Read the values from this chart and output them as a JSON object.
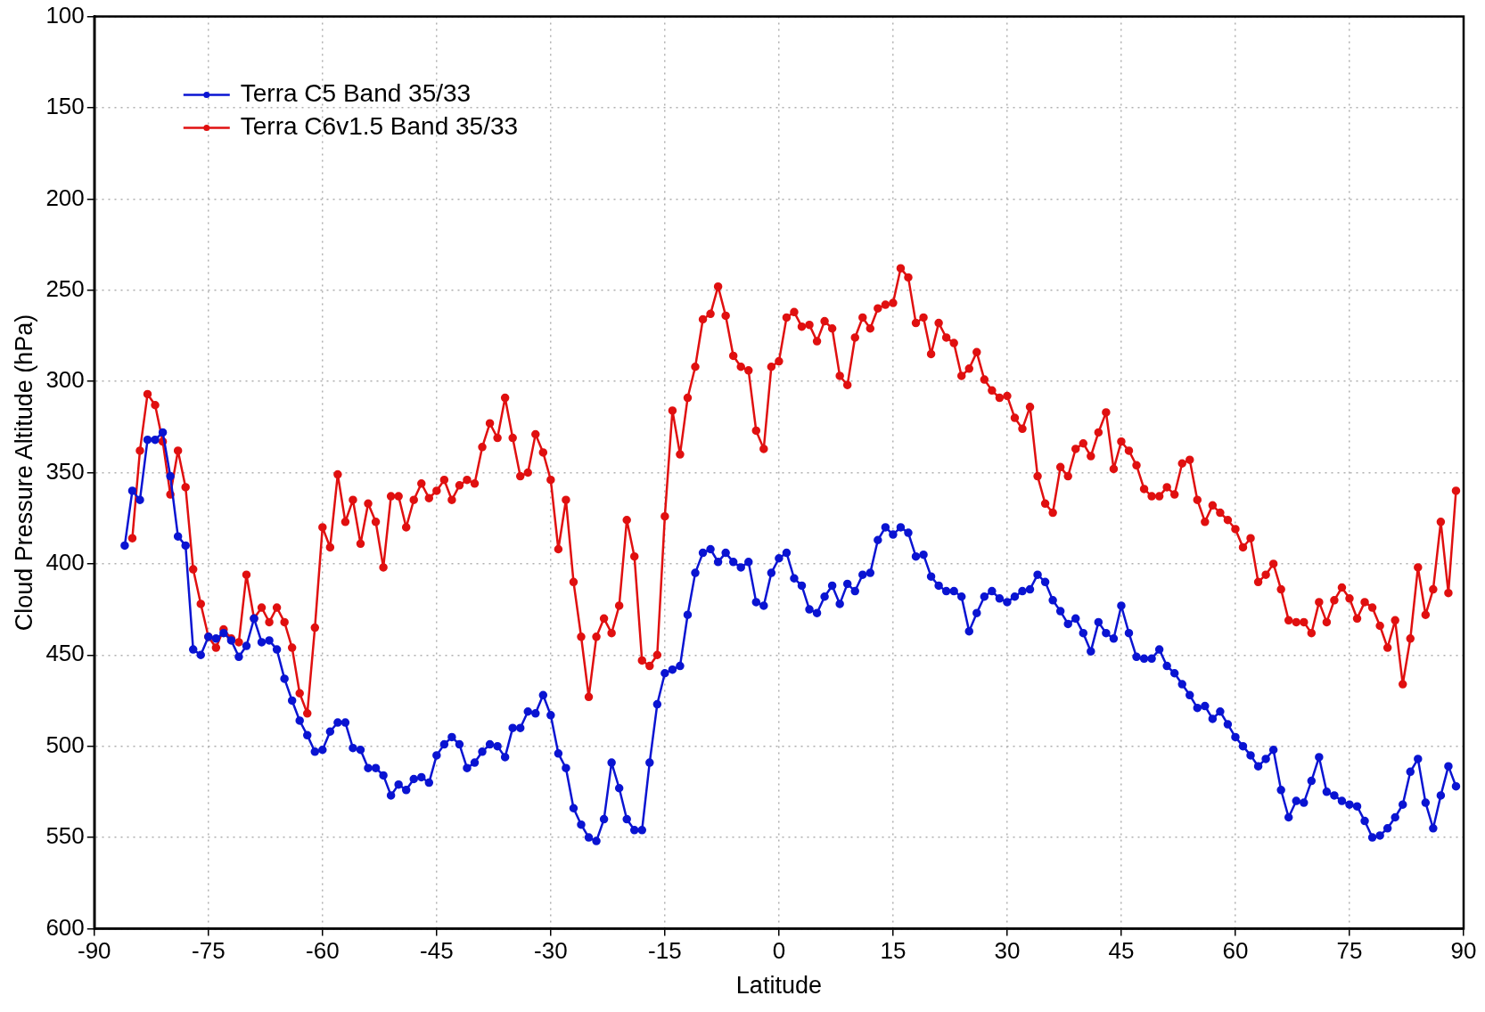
{
  "chart_data": {
    "type": "line",
    "xlabel": "Latitude",
    "ylabel": "Cloud Pressure Altitude (hPa)",
    "xlim": [
      -90,
      90
    ],
    "xticks": [
      -90,
      -75,
      -60,
      -45,
      -30,
      -15,
      0,
      15,
      30,
      45,
      60,
      75,
      90
    ],
    "ylim": [
      600,
      100
    ],
    "yticks": [
      100,
      150,
      200,
      250,
      300,
      350,
      400,
      450,
      500,
      550,
      600
    ],
    "grid": true,
    "legend": "top left",
    "marker": "circle",
    "line_style": "solid",
    "series": [
      {
        "name": "Terra C5 Band 35/33",
        "color": "#0a14d2",
        "x": [
          -86,
          -85,
          -84,
          -83,
          -82,
          -81,
          -80,
          -79,
          -78,
          -77,
          -76,
          -75,
          -74,
          -73,
          -72,
          -71,
          -70,
          -69,
          -68,
          -67,
          -66,
          -65,
          -64,
          -63,
          -62,
          -61,
          -60,
          -59,
          -58,
          -57,
          -56,
          -55,
          -54,
          -53,
          -52,
          -51,
          -50,
          -49,
          -48,
          -47,
          -46,
          -45,
          -44,
          -43,
          -42,
          -41,
          -40,
          -39,
          -38,
          -37,
          -36,
          -35,
          -34,
          -33,
          -32,
          -31,
          -30,
          -29,
          -28,
          -27,
          -26,
          -25,
          -24,
          -23,
          -22,
          -21,
          -20,
          -19,
          -18,
          -17,
          -16,
          -15,
          -14,
          -13,
          -12,
          -11,
          -10,
          -9,
          -8,
          -7,
          -6,
          -5,
          -4,
          -3,
          -2,
          -1,
          0,
          1,
          2,
          3,
          4,
          5,
          6,
          7,
          8,
          9,
          10,
          11,
          12,
          13,
          14,
          15,
          16,
          17,
          18,
          19,
          20,
          21,
          22,
          23,
          24,
          25,
          26,
          27,
          28,
          29,
          30,
          31,
          32,
          33,
          34,
          35,
          36,
          37,
          38,
          39,
          40,
          41,
          42,
          43,
          44,
          45,
          46,
          47,
          48,
          49,
          50,
          51,
          52,
          53,
          54,
          55,
          56,
          57,
          58,
          59,
          60,
          61,
          62,
          63,
          64,
          65,
          66,
          67,
          68,
          69,
          70,
          71,
          72,
          73,
          74,
          75,
          76,
          77,
          78,
          79,
          80,
          81,
          82,
          83,
          84,
          85,
          86,
          87,
          88,
          89
        ],
        "values": [
          390,
          360,
          365,
          332,
          332,
          328,
          352,
          385,
          390,
          447,
          450,
          440,
          441,
          438,
          442,
          451,
          445,
          430,
          443,
          442,
          447,
          463,
          475,
          486,
          494,
          503,
          502,
          492,
          487,
          487,
          501,
          502,
          512,
          512,
          516,
          527,
          521,
          524,
          518,
          517,
          520,
          505,
          499,
          495,
          499,
          512,
          509,
          503,
          499,
          500,
          506,
          490,
          490,
          481,
          482,
          472,
          483,
          504,
          512,
          534,
          543,
          550,
          552,
          540,
          509,
          523,
          540,
          546,
          546,
          509,
          477,
          460,
          458,
          456,
          428,
          405,
          394,
          392,
          399,
          394,
          399,
          402,
          399,
          421,
          423,
          405,
          397,
          394,
          408,
          412,
          425,
          427,
          418,
          412,
          422,
          411,
          415,
          406,
          405,
          387,
          380,
          384,
          380,
          383,
          396,
          395,
          407,
          412,
          415,
          415,
          418,
          437,
          427,
          418,
          415,
          419,
          421,
          418,
          415,
          414,
          406,
          410,
          420,
          426,
          433,
          430,
          438,
          448,
          432,
          438,
          441,
          423,
          438,
          451,
          452,
          452,
          447,
          456,
          460,
          466,
          472,
          479,
          478,
          485,
          481,
          488,
          495,
          500,
          505,
          511,
          507,
          502,
          524,
          539,
          530,
          531,
          519,
          506,
          525,
          527,
          530,
          532,
          533,
          541,
          550,
          549,
          545,
          539,
          532,
          514,
          507,
          531,
          545,
          527,
          511,
          522
        ]
      },
      {
        "name": "Terra C6v1.5 Band 35/33",
        "color": "#e01010",
        "x": [
          -85,
          -84,
          -83,
          -82,
          -81,
          -80,
          -79,
          -78,
          -77,
          -76,
          -75,
          -74,
          -73,
          -72,
          -71,
          -70,
          -69,
          -68,
          -67,
          -66,
          -65,
          -64,
          -63,
          -62,
          -61,
          -60,
          -59,
          -58,
          -57,
          -56,
          -55,
          -54,
          -53,
          -52,
          -51,
          -50,
          -49,
          -48,
          -47,
          -46,
          -45,
          -44,
          -43,
          -42,
          -41,
          -40,
          -39,
          -38,
          -37,
          -36,
          -35,
          -34,
          -33,
          -32,
          -31,
          -30,
          -29,
          -28,
          -27,
          -26,
          -25,
          -24,
          -23,
          -22,
          -21,
          -20,
          -19,
          -18,
          -17,
          -16,
          -15,
          -14,
          -13,
          -12,
          -11,
          -10,
          -9,
          -8,
          -7,
          -6,
          -5,
          -4,
          -3,
          -2,
          -1,
          0,
          1,
          2,
          3,
          4,
          5,
          6,
          7,
          8,
          9,
          10,
          11,
          12,
          13,
          14,
          15,
          16,
          17,
          18,
          19,
          20,
          21,
          22,
          23,
          24,
          25,
          26,
          27,
          28,
          29,
          30,
          31,
          32,
          33,
          34,
          35,
          36,
          37,
          38,
          39,
          40,
          41,
          42,
          43,
          44,
          45,
          46,
          47,
          48,
          49,
          50,
          51,
          52,
          53,
          54,
          55,
          56,
          57,
          58,
          59,
          60,
          61,
          62,
          63,
          64,
          65,
          66,
          67,
          68,
          69,
          70,
          71,
          72,
          73,
          74,
          75,
          76,
          77,
          78,
          79,
          80,
          81,
          82,
          83,
          84,
          85,
          86,
          87,
          88,
          89
        ],
        "values": [
          386,
          338,
          307,
          313,
          333,
          362,
          338,
          358,
          403,
          422,
          440,
          446,
          436,
          441,
          443,
          406,
          430,
          424,
          432,
          424,
          432,
          446,
          471,
          482,
          435,
          380,
          391,
          351,
          377,
          365,
          389,
          367,
          377,
          402,
          363,
          363,
          380,
          365,
          356,
          364,
          360,
          354,
          365,
          357,
          354,
          356,
          336,
          323,
          331,
          309,
          331,
          352,
          350,
          329,
          339,
          354,
          392,
          365,
          410,
          440,
          473,
          440,
          430,
          438,
          423,
          376,
          396,
          453,
          456,
          450,
          374,
          316,
          340,
          309,
          292,
          266,
          263,
          248,
          264,
          286,
          292,
          294,
          327,
          337,
          292,
          289,
          265,
          262,
          270,
          269,
          278,
          267,
          271,
          297,
          302,
          276,
          265,
          271,
          260,
          258,
          257,
          238,
          243,
          268,
          265,
          285,
          268,
          276,
          279,
          297,
          293,
          284,
          299,
          305,
          309,
          308,
          320,
          326,
          314,
          352,
          367,
          372,
          347,
          352,
          337,
          334,
          341,
          328,
          317,
          348,
          333,
          338,
          346,
          359,
          363,
          363,
          358,
          362,
          345,
          343,
          365,
          377,
          368,
          372,
          376,
          381,
          391,
          386,
          410,
          406,
          400,
          414,
          431,
          432,
          432,
          438,
          421,
          432,
          420,
          413,
          419,
          430,
          421,
          424,
          434,
          446,
          431,
          466,
          441,
          402,
          428,
          414,
          377,
          416,
          360
        ]
      }
    ]
  }
}
